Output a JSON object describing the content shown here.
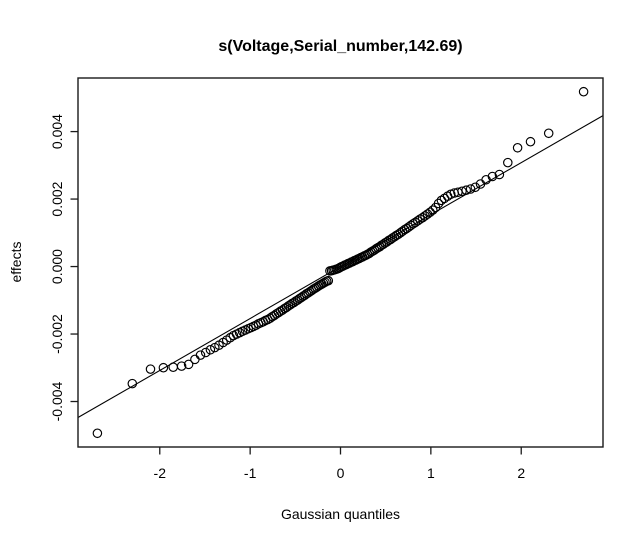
{
  "chart_data": {
    "type": "scatter",
    "title": "s(Voltage,Serial_number,142.69)",
    "xlabel": "Gaussian quantiles",
    "ylabel": "effects",
    "xlim": [
      -2.905,
      2.905
    ],
    "ylim": [
      -0.005348,
      0.005588
    ],
    "grid": "off",
    "legend": "none",
    "marker": "open-circle",
    "x_ticks": [
      -2,
      -1,
      0,
      1,
      2
    ],
    "x_tick_labels": [
      "-2",
      "-1",
      "0",
      "1",
      "2"
    ],
    "y_ticks": [
      -0.004,
      -0.002,
      0.0,
      0.002,
      0.004
    ],
    "y_tick_labels": [
      "-0.004",
      "-0.002",
      "0.000",
      "0.002",
      "0.004"
    ],
    "reference_line": {
      "slope": 0.00154,
      "intercept": 0.0
    },
    "colors": {
      "points": "#000000",
      "reference_line": "#000000",
      "frame": "#1a1a1a",
      "background": "#ffffff"
    },
    "points": [
      [
        -2.69,
        -0.004943
      ],
      [
        -2.304,
        -0.003468
      ],
      [
        -2.103,
        -0.003039
      ],
      [
        -1.96,
        -0.002998
      ],
      [
        -1.852,
        -0.002982
      ],
      [
        -1.759,
        -0.002949
      ],
      [
        -1.681,
        -0.002899
      ],
      [
        -1.611,
        -0.002751
      ],
      [
        -1.549,
        -0.002625
      ],
      [
        -1.492,
        -0.002548
      ],
      [
        -1.44,
        -0.002468
      ],
      [
        -1.391,
        -0.002402
      ],
      [
        -1.345,
        -0.002331
      ],
      [
        -1.299,
        -0.002251
      ],
      [
        -1.259,
        -0.002179
      ],
      [
        -1.221,
        -0.00211
      ],
      [
        -1.185,
        -0.002045
      ],
      [
        -1.15,
        -0.002001
      ],
      [
        -1.117,
        -0.00196
      ],
      [
        -1.084,
        -0.001919
      ],
      [
        -1.052,
        -0.00188
      ],
      [
        -1.022,
        -0.001844
      ],
      [
        -0.992,
        -0.001808
      ],
      [
        -0.963,
        -0.001773
      ],
      [
        -0.935,
        -0.00174
      ],
      [
        -0.907,
        -0.001697
      ],
      [
        -0.881,
        -0.001667
      ],
      [
        -0.855,
        -0.001637
      ],
      [
        -0.829,
        -0.001597
      ],
      [
        -0.804,
        -0.001568
      ],
      [
        -0.779,
        -0.00153
      ],
      [
        -0.755,
        -0.001483
      ],
      [
        -0.732,
        -0.001447
      ],
      [
        -0.709,
        -0.001402
      ],
      [
        -0.686,
        -0.001366
      ],
      [
        -0.664,
        -0.001323
      ],
      [
        -0.641,
        -0.001287
      ],
      [
        -0.619,
        -0.001243
      ],
      [
        -0.598,
        -0.001211
      ],
      [
        -0.576,
        -0.001167
      ],
      [
        -0.555,
        -0.001135
      ],
      [
        -0.534,
        -0.001092
      ],
      [
        -0.514,
        -0.001062
      ],
      [
        -0.494,
        -0.001021
      ],
      [
        -0.474,
        -0.00099
      ],
      [
        -0.454,
        -0.000949
      ],
      [
        -0.434,
        -0.000918
      ],
      [
        -0.414,
        -0.000878
      ],
      [
        -0.395,
        -0.000848
      ],
      [
        -0.376,
        -0.000809
      ],
      [
        -0.357,
        -0.00078
      ],
      [
        -0.338,
        -0.000741
      ],
      [
        -0.319,
        -0.000711
      ],
      [
        -0.3,
        -0.000672
      ],
      [
        -0.281,
        -0.000643
      ],
      [
        -0.263,
        -0.000615
      ],
      [
        -0.244,
        -0.000576
      ],
      [
        -0.226,
        -0.000548
      ],
      [
        -0.207,
        -0.000519
      ],
      [
        -0.189,
        -0.000491
      ],
      [
        -0.171,
        -0.000463
      ],
      [
        -0.153,
        -0.000436
      ],
      [
        -0.135,
        -0.000418
      ],
      [
        -0.117,
        -0.00013
      ],
      [
        -0.099,
        -0.000123
      ],
      [
        -0.081,
        -0.000105
      ],
      [
        -0.063,
        -9.7e-05
      ],
      [
        -0.045,
        -7.9e-05
      ],
      [
        -0.027,
        -6.2e-05
      ],
      [
        -0.009,
        -3.4e-05
      ],
      [
        0.009,
        -6e-06
      ],
      [
        0.027,
        1.2e-05
      ],
      [
        0.045,
        3.9e-05
      ],
      [
        0.063,
        5.7e-05
      ],
      [
        0.081,
        8.5e-05
      ],
      [
        0.099,
        0.000103
      ],
      [
        0.117,
        0.00013
      ],
      [
        0.135,
        0.000148
      ],
      [
        0.153,
        0.000176
      ],
      [
        0.171,
        0.000193
      ],
      [
        0.189,
        0.000221
      ],
      [
        0.207,
        0.000239
      ],
      [
        0.226,
        0.000268
      ],
      [
        0.244,
        0.000286
      ],
      [
        0.263,
        0.000315
      ],
      [
        0.281,
        0.000333
      ],
      [
        0.3,
        0.000362
      ],
      [
        0.319,
        0.000391
      ],
      [
        0.338,
        0.00043
      ],
      [
        0.357,
        0.00046
      ],
      [
        0.376,
        0.000489
      ],
      [
        0.395,
        0.000528
      ],
      [
        0.414,
        0.000558
      ],
      [
        0.434,
        0.000588
      ],
      [
        0.454,
        0.000629
      ],
      [
        0.474,
        0.00066
      ],
      [
        0.494,
        0.000701
      ],
      [
        0.514,
        0.000732
      ],
      [
        0.535,
        0.000774
      ],
      [
        0.555,
        0.000805
      ],
      [
        0.576,
        0.000847
      ],
      [
        0.598,
        0.000881
      ],
      [
        0.619,
        0.000923
      ],
      [
        0.641,
        0.000957
      ],
      [
        0.664,
        0.001003
      ],
      [
        0.686,
        0.001046
      ],
      [
        0.709,
        0.001092
      ],
      [
        0.732,
        0.001127
      ],
      [
        0.755,
        0.001173
      ],
      [
        0.779,
        0.00122
      ],
      [
        0.804,
        0.001268
      ],
      [
        0.829,
        0.001307
      ],
      [
        0.855,
        0.001357
      ],
      [
        0.881,
        0.001407
      ],
      [
        0.907,
        0.001447
      ],
      [
        0.935,
        0.0015
      ],
      [
        0.963,
        0.001553
      ],
      [
        0.992,
        0.001608
      ],
      [
        1.022,
        0.001674
      ],
      [
        1.052,
        0.00175
      ],
      [
        1.084,
        0.001869
      ],
      [
        1.117,
        0.00196
      ],
      [
        1.15,
        0.002021
      ],
      [
        1.185,
        0.002085
      ],
      [
        1.221,
        0.00214
      ],
      [
        1.259,
        0.002179
      ],
      [
        1.299,
        0.002201
      ],
      [
        1.345,
        0.002231
      ],
      [
        1.391,
        0.002262
      ],
      [
        1.44,
        0.002298
      ],
      [
        1.492,
        0.002348
      ],
      [
        1.549,
        0.002446
      ],
      [
        1.611,
        0.002571
      ],
      [
        1.681,
        0.002669
      ],
      [
        1.759,
        0.002729
      ],
      [
        1.852,
        0.003082
      ],
      [
        1.96,
        0.003518
      ],
      [
        2.103,
        0.003699
      ],
      [
        2.304,
        0.003948
      ],
      [
        2.69,
        0.005183
      ]
    ]
  }
}
